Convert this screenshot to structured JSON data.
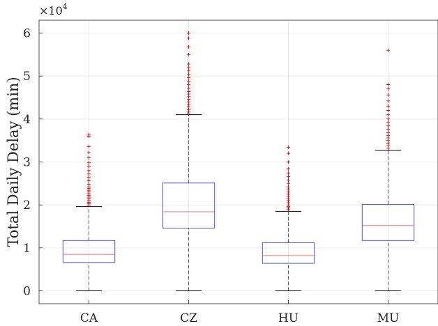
{
  "chart_data": {
    "type": "box",
    "ylabel": "Total Daily Delay (min)",
    "xlabel": "",
    "title": "",
    "exponent_label": "×10",
    "exponent_power": "4",
    "scale_factor": 10000,
    "ylim": [
      -0.3,
      6.3
    ],
    "yticks": [
      0,
      1,
      2,
      3,
      4,
      5,
      6
    ],
    "ytick_labels": [
      "0",
      "1",
      "2",
      "3",
      "4",
      "5",
      "6"
    ],
    "grid": true,
    "categories": [
      "CA",
      "CZ",
      "HU",
      "MU"
    ],
    "boxes": [
      {
        "category": "CA",
        "min": 0.0,
        "q1": 0.66,
        "median": 0.85,
        "q3": 1.17,
        "whisker_high": 1.96,
        "outliers": [
          2.0,
          2.03,
          2.06,
          2.1,
          2.14,
          2.18,
          2.22,
          2.26,
          2.3,
          2.34,
          2.38,
          2.42,
          2.48,
          2.56,
          2.64,
          2.72,
          2.8,
          2.9,
          2.98,
          3.1,
          3.22,
          3.36,
          3.6,
          3.64
        ]
      },
      {
        "category": "CZ",
        "min": 0.0,
        "q1": 1.46,
        "median": 1.84,
        "q3": 2.51,
        "whisker_high": 4.1,
        "outliers": [
          4.14,
          4.18,
          4.22,
          4.28,
          4.34,
          4.4,
          4.46,
          4.52,
          4.58,
          4.64,
          4.72,
          4.8,
          4.88,
          4.96,
          5.04,
          5.12,
          5.2,
          5.28,
          5.5,
          5.68,
          5.88,
          6.0
        ]
      },
      {
        "category": "HU",
        "min": 0.0,
        "q1": 0.64,
        "median": 0.82,
        "q3": 1.12,
        "whisker_high": 1.85,
        "outliers": [
          1.9,
          1.93,
          1.96,
          2.0,
          2.05,
          2.1,
          2.15,
          2.2,
          2.25,
          2.3,
          2.36,
          2.42,
          2.5,
          2.58,
          2.66,
          2.74,
          2.84,
          3.0,
          3.2,
          3.34
        ]
      },
      {
        "category": "MU",
        "min": 0.0,
        "q1": 1.17,
        "median": 1.52,
        "q3": 2.01,
        "whisker_high": 3.27,
        "outliers": [
          3.32,
          3.38,
          3.44,
          3.5,
          3.56,
          3.62,
          3.68,
          3.76,
          3.84,
          3.92,
          4.0,
          4.1,
          4.2,
          4.3,
          4.42,
          4.56,
          4.7,
          4.8,
          5.6
        ]
      }
    ],
    "colors": {
      "box": "#4d4dff",
      "median": "#ff6b6b",
      "whisker": "#555555",
      "outlier": "#ff0000",
      "axis": "#262626",
      "grid": "#e6e6e6"
    }
  }
}
